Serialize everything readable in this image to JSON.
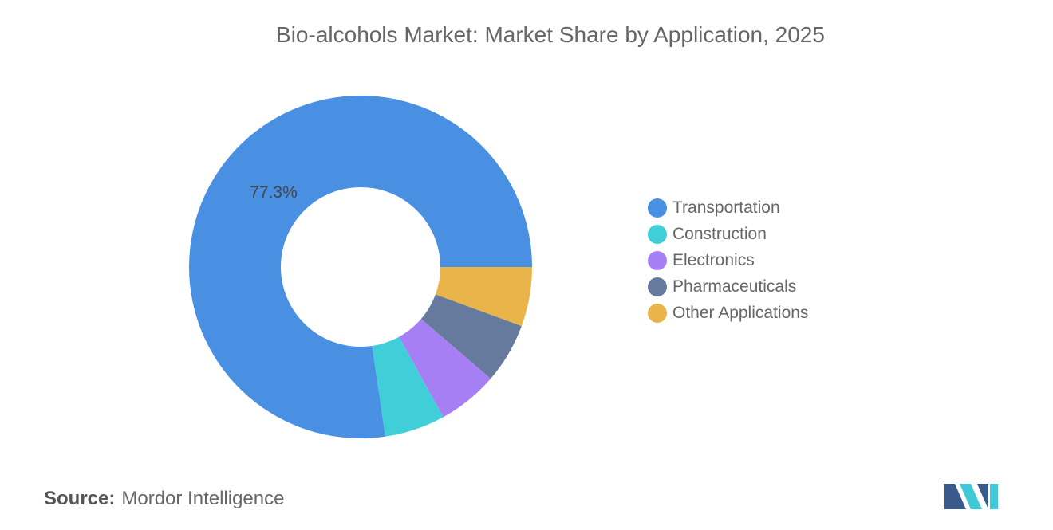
{
  "title": "Bio-alcohols Market: Market Share by Application, 2025",
  "source_label": "Source:",
  "source_value": "Mordor Intelligence",
  "chart_data": {
    "type": "pie",
    "donut": true,
    "title": "Bio-alcohols Market: Market Share by Application, 2025",
    "categories": [
      "Transportation",
      "Construction",
      "Electronics",
      "Pharmaceuticals",
      "Other Applications"
    ],
    "values": [
      77.3,
      5.7,
      5.7,
      5.7,
      5.6
    ],
    "colors": [
      "#4a90e2",
      "#40cfd9",
      "#a77ff5",
      "#657a9c",
      "#e9b54b"
    ],
    "data_labels": [
      "77.3%"
    ],
    "legend_position": "right"
  },
  "logo_colors": [
    "#3a5a8c",
    "#40c8d6"
  ]
}
